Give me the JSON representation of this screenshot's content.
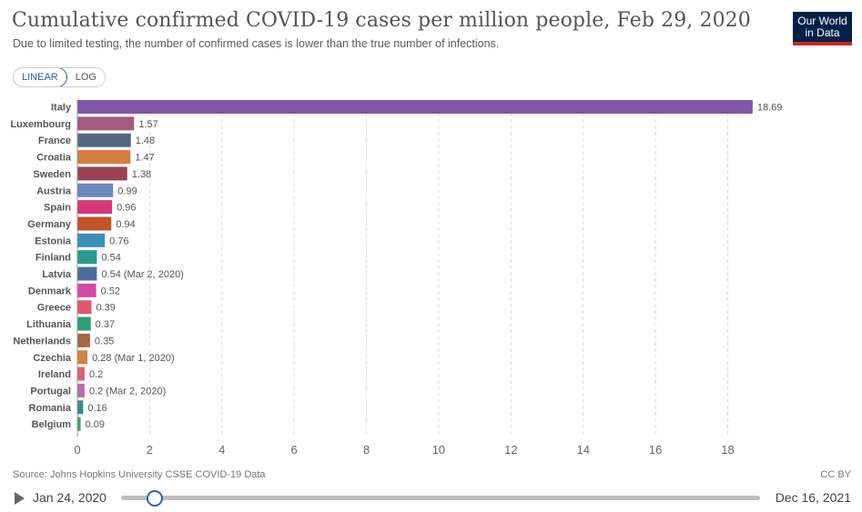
{
  "header": {
    "title": "Cumulative confirmed COVID-19 cases per million people, Feb 29, 2020",
    "subtitle": "Due to limited testing, the number of confirmed cases is lower than the true number of infections.",
    "logo_line1": "Our World",
    "logo_line2": "in Data"
  },
  "scale_toggle": {
    "linear": "LINEAR",
    "log": "LOG",
    "selected": "LINEAR"
  },
  "chart_data": {
    "type": "bar",
    "orientation": "horizontal",
    "xlim": [
      0,
      19
    ],
    "xticks": [
      0,
      2,
      4,
      6,
      8,
      10,
      12,
      14,
      16,
      18
    ],
    "grid": true,
    "bars": [
      {
        "label": "Italy",
        "value": 18.69,
        "display": "18.69",
        "color": "#8156a8"
      },
      {
        "label": "Luxembourg",
        "value": 1.57,
        "display": "1.57",
        "color": "#a35b7f"
      },
      {
        "label": "France",
        "value": 1.48,
        "display": "1.48",
        "color": "#566682"
      },
      {
        "label": "Croatia",
        "value": 1.47,
        "display": "1.47",
        "color": "#d67d3e"
      },
      {
        "label": "Sweden",
        "value": 1.38,
        "display": "1.38",
        "color": "#9a4352"
      },
      {
        "label": "Austria",
        "value": 0.99,
        "display": "0.99",
        "color": "#6d87bd"
      },
      {
        "label": "Spain",
        "value": 0.96,
        "display": "0.96",
        "color": "#d6387c"
      },
      {
        "label": "Germany",
        "value": 0.94,
        "display": "0.94",
        "color": "#c05529"
      },
      {
        "label": "Estonia",
        "value": 0.76,
        "display": "0.76",
        "color": "#3b8fb5"
      },
      {
        "label": "Finland",
        "value": 0.54,
        "display": "0.54",
        "color": "#2a9c8e"
      },
      {
        "label": "Latvia",
        "value": 0.54,
        "display": "0.54 (Mar 2, 2020)",
        "color": "#4d6c9c"
      },
      {
        "label": "Denmark",
        "value": 0.52,
        "display": "0.52",
        "color": "#d547a6"
      },
      {
        "label": "Greece",
        "value": 0.39,
        "display": "0.39",
        "color": "#e2576c"
      },
      {
        "label": "Lithuania",
        "value": 0.37,
        "display": "0.37",
        "color": "#2b9e7a"
      },
      {
        "label": "Netherlands",
        "value": 0.35,
        "display": "0.35",
        "color": "#a5673f"
      },
      {
        "label": "Czechia",
        "value": 0.28,
        "display": "0.28 (Mar 1, 2020)",
        "color": "#d0853f"
      },
      {
        "label": "Ireland",
        "value": 0.2,
        "display": "0.2",
        "color": "#d96377"
      },
      {
        "label": "Portugal",
        "value": 0.2,
        "display": "0.2 (Mar 2, 2020)",
        "color": "#b76bb5"
      },
      {
        "label": "Romania",
        "value": 0.16,
        "display": "0.16",
        "color": "#3a8c8c"
      },
      {
        "label": "Belgium",
        "value": 0.09,
        "display": "0.09",
        "color": "#3fa16a"
      }
    ]
  },
  "footer": {
    "source": "Source: Johns Hopkins University CSSE COVID-19 Data",
    "license": "CC BY"
  },
  "timeline": {
    "start": "Jan 24, 2020",
    "end": "Dec 16, 2021",
    "position_fraction": 0.052
  }
}
